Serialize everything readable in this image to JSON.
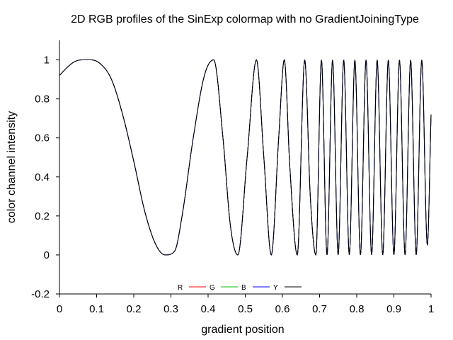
{
  "chart_data": {
    "type": "line",
    "title": "2D RGB profiles of the SinExp colormap with no GradientJoiningType",
    "xlabel": "gradient position",
    "ylabel": "color channel intensity",
    "xlim": [
      0,
      1
    ],
    "ylim": [
      -0.2,
      1.1
    ],
    "x_ticks": [
      0,
      0.1,
      0.2,
      0.3,
      0.4,
      0.5,
      0.6,
      0.7,
      0.8,
      0.9,
      1
    ],
    "x_tick_labels": [
      "0",
      "0.1",
      "0.2",
      "0.3",
      "0.4",
      "0.5",
      "0.6",
      "0.7",
      "0.8",
      "0.9",
      "1"
    ],
    "y_ticks": [
      -0.2,
      0,
      0.2,
      0.4,
      0.6,
      0.8,
      1
    ],
    "y_tick_labels": [
      "-0.2",
      "0",
      "0.2",
      "0.4",
      "0.6",
      "0.8",
      "1"
    ],
    "grid": false,
    "legend_position": "bottom-center",
    "series": [
      {
        "name": "R",
        "color": "#ff0000",
        "overlaid_by": "Y"
      },
      {
        "name": "G",
        "color": "#00c000",
        "overlaid_by": "Y"
      },
      {
        "name": "B",
        "color": "#0000ff",
        "overlaid_by": "Y"
      },
      {
        "name": "Y",
        "color": "#000000"
      }
    ],
    "curve": {
      "description_of_samples": "x, y points traced from the plotted curve (all channels coincide)",
      "x": [
        0,
        0.02,
        0.04,
        0.06,
        0.085,
        0.11,
        0.14,
        0.17,
        0.2,
        0.23,
        0.26,
        0.285,
        0.31,
        0.33,
        0.36,
        0.39,
        0.415,
        0.44,
        0.46,
        0.48,
        0.505,
        0.53,
        0.55,
        0.57,
        0.59,
        0.605,
        0.62,
        0.64,
        0.66,
        0.675,
        0.69,
        0.705,
        0.72,
        0.735,
        0.75,
        0.765,
        0.78,
        0.795,
        0.81,
        0.825,
        0.84,
        0.855,
        0.87,
        0.885,
        0.9,
        0.915,
        0.93,
        0.945,
        0.96,
        0.975,
        0.99,
        1.0
      ],
      "y": [
        0.92,
        0.96,
        0.99,
        1.0,
        1.0,
        0.98,
        0.9,
        0.72,
        0.48,
        0.22,
        0.05,
        0.0,
        0.02,
        0.2,
        0.6,
        0.92,
        1.0,
        0.6,
        0.15,
        0.0,
        0.5,
        1.0,
        0.5,
        0.0,
        0.6,
        1.0,
        0.45,
        0.0,
        1.0,
        0.3,
        0.0,
        1.0,
        0.0,
        1.0,
        0.0,
        1.0,
        0.0,
        1.0,
        0.0,
        1.0,
        0.0,
        1.0,
        0.0,
        1.0,
        0.0,
        1.0,
        0.0,
        1.0,
        0.0,
        1.0,
        0.05,
        0.72
      ]
    }
  }
}
